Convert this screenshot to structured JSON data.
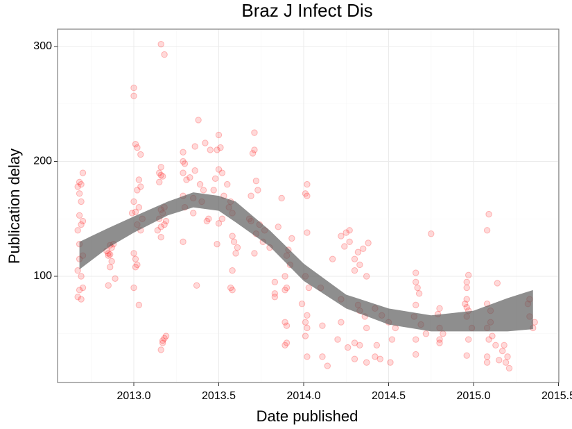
{
  "chart_data": {
    "type": "scatter",
    "title": "Braz J Infect Dis",
    "x_label": "Date published",
    "y_label": "Publication delay",
    "color": "#ff0000",
    "xlim": [
      2012.551,
      2015.502
    ],
    "ylim": [
      7.55,
      315.1
    ],
    "xticks": [
      {
        "value": 2013,
        "label": "2013.0"
      },
      2013.5,
      {
        "value": 2014,
        "label": "2014.0"
      },
      2014.5,
      {
        "value": 2015,
        "label": "2015.0"
      },
      2015.5
    ],
    "yticks": [
      100,
      200,
      300
    ],
    "x_minor_grid": [
      2012.75,
      2013.25,
      2013.75,
      2014.25,
      2014.75,
      2015.25
    ],
    "y_minor_grid": [
      50,
      150,
      250
    ],
    "grid": true,
    "x": [
      2012.68,
      2012.69,
      2012.67,
      2012.68,
      2012.69,
      2012.68,
      2012.7,
      2012.69,
      2012.67,
      2012.68,
      2012.7,
      2012.68,
      2012.67,
      2012.69,
      2012.7,
      2012.68,
      2012.67,
      2012.69,
      2012.7,
      2012.85,
      2012.86,
      2012.84,
      2012.87,
      2012.88,
      2012.86,
      2012.85,
      2012.87,
      2012.86,
      2012.89,
      2012.85,
      2013.0,
      2013.0,
      2013.01,
      2013.02,
      2013.04,
      2013.03,
      2013.04,
      2013.02,
      2013.0,
      2013.03,
      2013.01,
      2012.99,
      2013.05,
      2013.02,
      2013.04,
      2013.0,
      2013.01,
      2013.02,
      2013.01,
      2013.0,
      2013.03,
      2013.16,
      2013.18,
      2013.16,
      2013.15,
      2013.16,
      2013.17,
      2013.15,
      2013.18,
      2013.16,
      2013.17,
      2013.15,
      2013.19,
      2013.18,
      2013.16,
      2013.14,
      2013.16,
      2013.19,
      2013.18,
      2013.17,
      2013.17,
      2013.16,
      2013.29,
      2013.29,
      2013.3,
      2013.36,
      2013.29,
      2013.33,
      2013.31,
      2013.39,
      2013.41,
      2013.29,
      2013.35,
      2013.4,
      2013.3,
      2013.35,
      2013.44,
      2013.43,
      2013.29,
      2013.37,
      2013.38,
      2013.42,
      2013.36,
      2013.45,
      2013.5,
      2013.51,
      2013.49,
      2013.5,
      2013.52,
      2013.48,
      2013.55,
      2013.47,
      2013.53,
      2013.57,
      2013.56,
      2013.58,
      2013.52,
      2013.5,
      2013.58,
      2013.59,
      2013.49,
      2013.61,
      2013.6,
      2013.58,
      2013.57,
      2013.58,
      2013.71,
      2013.71,
      2013.7,
      2013.72,
      2013.73,
      2013.69,
      2013.68,
      2013.69,
      2013.74,
      2013.77,
      2013.72,
      2013.76,
      2013.8,
      2013.71,
      2013.87,
      2013.85,
      2013.93,
      2013.91,
      2013.9,
      2013.92,
      2013.89,
      2013.83,
      2013.9,
      2013.89,
      2013.83,
      2013.83,
      2013.89,
      2013.9,
      2013.9,
      2013.89,
      2014.02,
      2014.01,
      2014.02,
      2014.02,
      2014.01,
      2014.03,
      2013.99,
      2014.02,
      2014.01,
      2014.02,
      2014.01,
      2014.02,
      2014.17,
      2014.1,
      2014.11,
      2014.11,
      2014.14,
      2014.27,
      2014.25,
      2014.22,
      2014.27,
      2014.24,
      2014.32,
      2014.3,
      2014.33,
      2014.3,
      2014.37,
      2014.22,
      2014.32,
      2014.33,
      2014.36,
      2014.22,
      2014.37,
      2014.2,
      2014.3,
      2014.33,
      2014.26,
      2014.3,
      2014.37,
      2014.38,
      2014.35,
      2014.42,
      2014.46,
      2014.5,
      2014.54,
      2014.52,
      2014.43,
      2014.42,
      2014.45,
      2014.51,
      2014.66,
      2014.66,
      2014.67,
      2014.68,
      2014.66,
      2014.65,
      2014.69,
      2014.72,
      2014.66,
      2014.66,
      2014.75,
      2014.8,
      2014.79,
      2014.8,
      2014.82,
      2014.8,
      2014.8,
      2014.97,
      2014.96,
      2014.96,
      2014.96,
      2014.95,
      2014.96,
      2014.97,
      2014.96,
      2014.99,
      2014.97,
      2014.96,
      2015.09,
      2015.08,
      2015.14,
      2015.08,
      2015.1,
      2015.1,
      2015.08,
      2015.11,
      2015.09,
      2015.18,
      2015.08,
      2015.15,
      2015.08,
      2015.33,
      2015.32,
      2015.33,
      2015.36,
      2015.35,
      2015.13,
      2015.17,
      2015.2,
      2015.19,
      2015.21
    ],
    "values": [
      182,
      180,
      178,
      172,
      165,
      153,
      148,
      145,
      140,
      128,
      118,
      115,
      105,
      100,
      90,
      88,
      82,
      80,
      190,
      120,
      119,
      122,
      125,
      128,
      127,
      118,
      113,
      108,
      98,
      92,
      264,
      257,
      215,
      212,
      206,
      184,
      178,
      175,
      165,
      160,
      156,
      155,
      150,
      145,
      140,
      120,
      115,
      110,
      108,
      90,
      75,
      302,
      293,
      195,
      190,
      188,
      187,
      182,
      160,
      158,
      155,
      150,
      148,
      145,
      143,
      140,
      134,
      48,
      46,
      44,
      42,
      36,
      208,
      200,
      198,
      192,
      190,
      186,
      184,
      180,
      175,
      170,
      168,
      165,
      160,
      155,
      150,
      148,
      130,
      92,
      236,
      216,
      213,
      210,
      223,
      212,
      210,
      193,
      190,
      185,
      180,
      175,
      170,
      165,
      160,
      155,
      150,
      146,
      135,
      130,
      128,
      125,
      120,
      105,
      90,
      88,
      225,
      210,
      207,
      183,
      175,
      170,
      150,
      148,
      145,
      140,
      137,
      130,
      125,
      120,
      168,
      143,
      133,
      123,
      118,
      110,
      100,
      95,
      90,
      88,
      85,
      82,
      60,
      57,
      42,
      40,
      180,
      172,
      170,
      138,
      100,
      90,
      76,
      66,
      60,
      55,
      48,
      30,
      115,
      90,
      57,
      30,
      22,
      140,
      138,
      135,
      130,
      126,
      121,
      115,
      110,
      105,
      100,
      80,
      75,
      70,
      65,
      60,
      55,
      45,
      42,
      40,
      38,
      28,
      25,
      129,
      124,
      72,
      66,
      60,
      55,
      45,
      40,
      30,
      28,
      25,
      103,
      95,
      90,
      85,
      75,
      65,
      58,
      50,
      45,
      32,
      137,
      72,
      67,
      55,
      50,
      45,
      42,
      101,
      95,
      90,
      80,
      76,
      73,
      70,
      65,
      55,
      45,
      31,
      154,
      140,
      94,
      76,
      70,
      60,
      55,
      48,
      45,
      40,
      30,
      27,
      25,
      80,
      76,
      65,
      60,
      55,
      40,
      35,
      30,
      25,
      20
    ],
    "band": {
      "color": "#595959",
      "x": [
        2012.68,
        2012.85,
        2013.0,
        2013.2,
        2013.35,
        2013.5,
        2013.6,
        2013.8,
        2014.0,
        2014.25,
        2014.5,
        2014.75,
        2015.0,
        2015.2,
        2015.35
      ],
      "upper": [
        130,
        142,
        152,
        165,
        173,
        170,
        165,
        140,
        111,
        84,
        72,
        66,
        70,
        81,
        88
      ],
      "lower": [
        106,
        125,
        138,
        153,
        160,
        157,
        147,
        126,
        96,
        72,
        58,
        52,
        52,
        52,
        54
      ]
    }
  }
}
